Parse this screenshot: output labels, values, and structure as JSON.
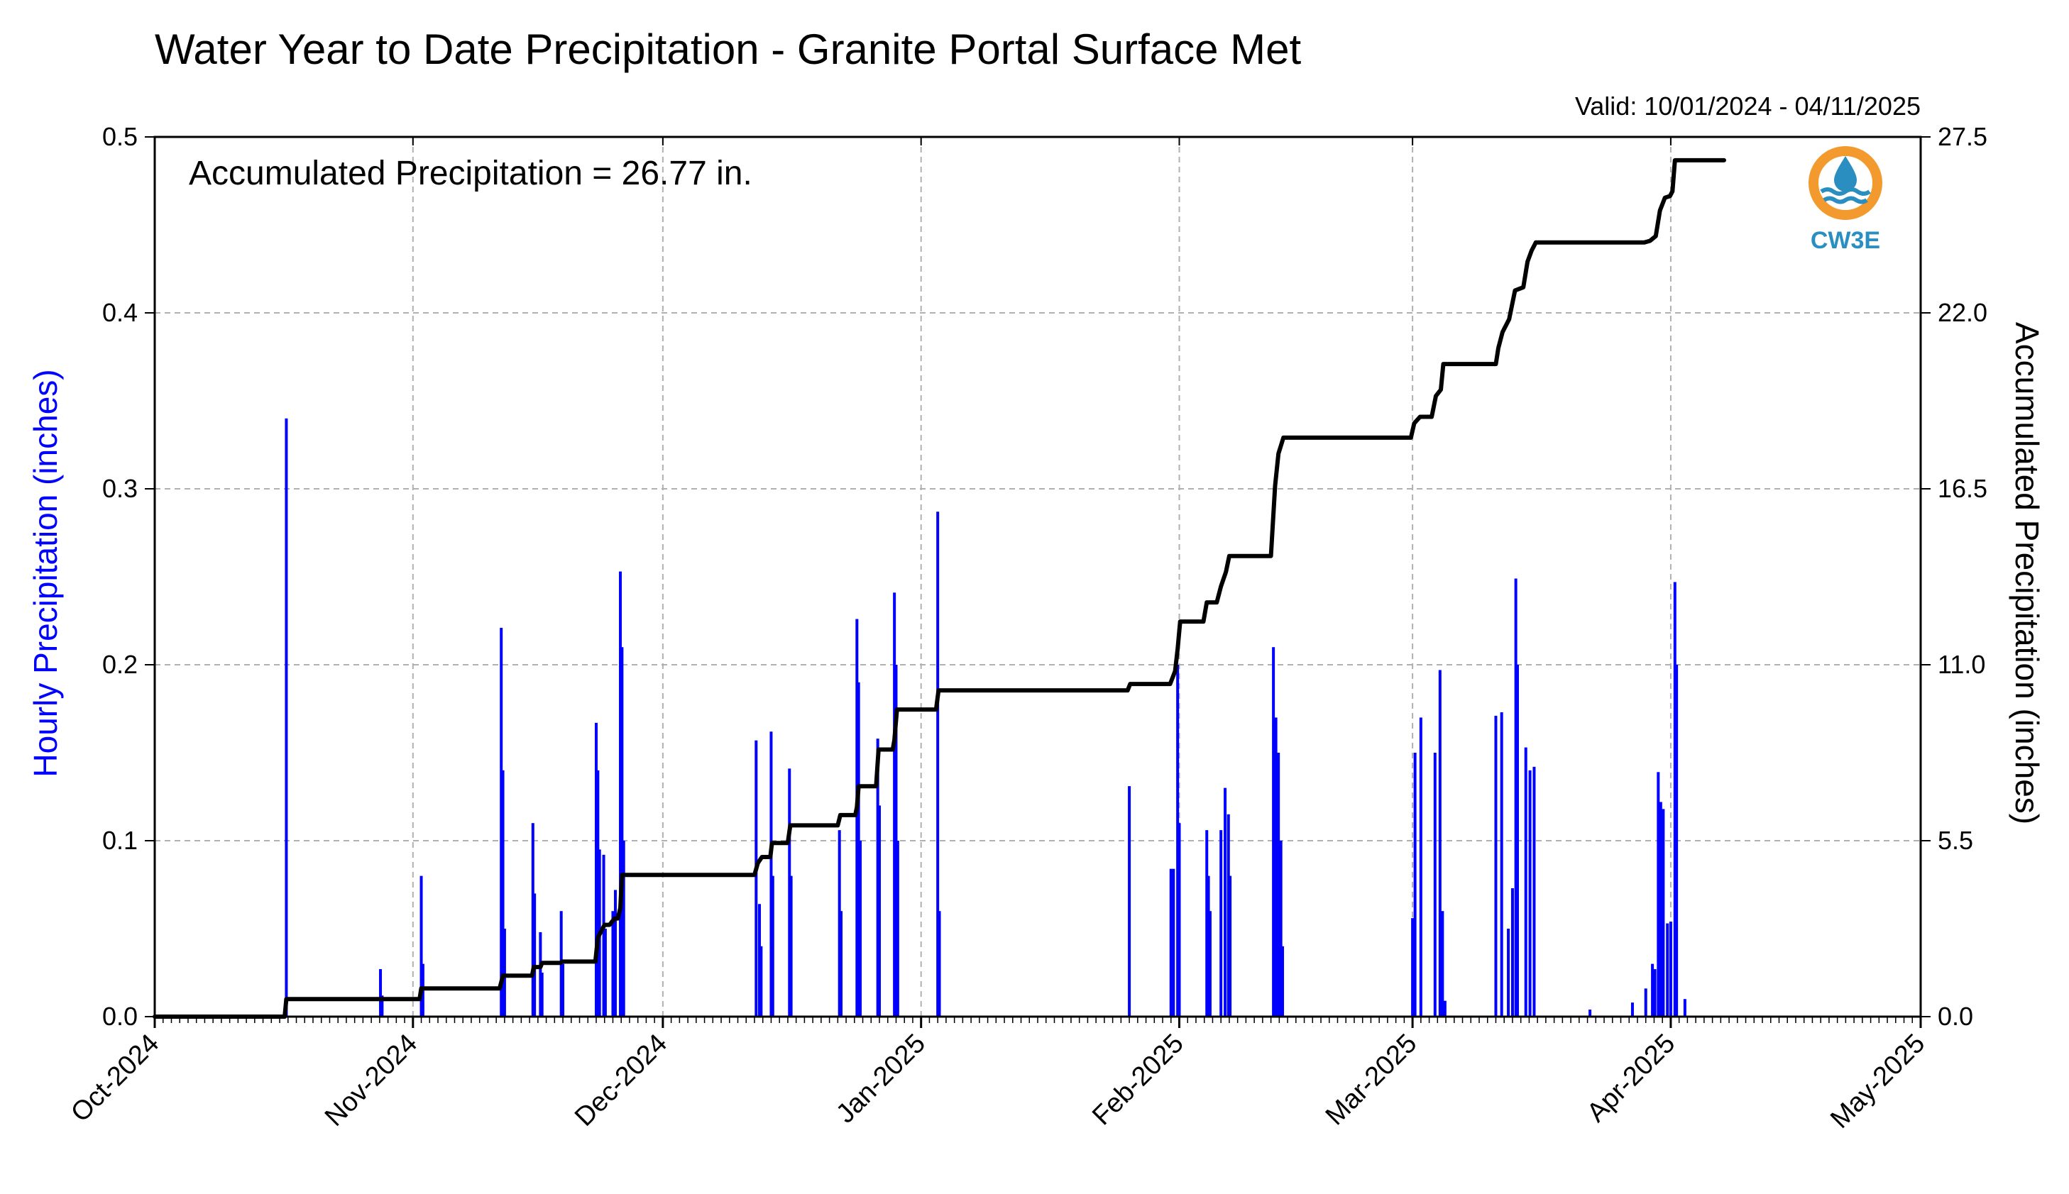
{
  "chart_data": {
    "type": "bar",
    "title": "Water Year to Date Precipitation - Granite Portal Surface Met",
    "subtitle": "Valid: 10/01/2024 - 04/11/2025",
    "annotation": "Accumulated Precipitation = 26.77 in.",
    "xlabel": "",
    "ylabel_left": "Hourly Precipitation (inches)",
    "ylabel_right": "Accumulated Precipitation (inches)",
    "ylim_left": [
      0,
      0.5
    ],
    "ylim_right": [
      0,
      27.5
    ],
    "xlim_days": [
      0,
      212
    ],
    "x_ticks": [
      {
        "label": "Oct-2024",
        "day": 0
      },
      {
        "label": "Nov-2024",
        "day": 31
      },
      {
        "label": "Dec-2024",
        "day": 61
      },
      {
        "label": "Jan-2025",
        "day": 92
      },
      {
        "label": "Feb-2025",
        "day": 123
      },
      {
        "label": "Mar-2025",
        "day": 151
      },
      {
        "label": "Apr-2025",
        "day": 182
      },
      {
        "label": "May-2025",
        "day": 212
      }
    ],
    "y_ticks_left": [
      "0.0",
      "0.1",
      "0.2",
      "0.3",
      "0.4",
      "0.5"
    ],
    "y_ticks_right": [
      "0.0",
      "5.5",
      "11.0",
      "16.5",
      "22.0",
      "27.5"
    ],
    "grid": true,
    "colors": {
      "hourly": "#0000ff",
      "accumulated": "#000000",
      "grid": "#b0b0b0",
      "logo_ring": "#f29a2e",
      "logo_blue": "#2a8fc0"
    },
    "logo": {
      "text": "CW3E",
      "icon": "water-drop-icon"
    },
    "series": [
      {
        "name": "Hourly Precipitation (inches)",
        "type": "bar",
        "axis": "left",
        "points": [
          [
            15.8,
            0.34
          ],
          [
            27.1,
            0.027
          ],
          [
            27.3,
            0.012
          ],
          [
            32.0,
            0.08
          ],
          [
            32.2,
            0.03
          ],
          [
            41.6,
            0.221
          ],
          [
            41.8,
            0.14
          ],
          [
            42.0,
            0.05
          ],
          [
            45.4,
            0.11
          ],
          [
            45.6,
            0.07
          ],
          [
            46.3,
            0.048
          ],
          [
            46.5,
            0.025
          ],
          [
            48.8,
            0.06
          ],
          [
            49.0,
            0.03
          ],
          [
            53.0,
            0.167
          ],
          [
            53.2,
            0.14
          ],
          [
            53.4,
            0.095
          ],
          [
            53.9,
            0.092
          ],
          [
            54.1,
            0.05
          ],
          [
            55.0,
            0.06
          ],
          [
            55.3,
            0.072
          ],
          [
            55.9,
            0.253
          ],
          [
            56.1,
            0.21
          ],
          [
            56.3,
            0.1
          ],
          [
            72.2,
            0.157
          ],
          [
            72.6,
            0.064
          ],
          [
            72.8,
            0.04
          ],
          [
            74.0,
            0.162
          ],
          [
            74.2,
            0.08
          ],
          [
            76.2,
            0.141
          ],
          [
            76.4,
            0.08
          ],
          [
            82.2,
            0.106
          ],
          [
            82.4,
            0.06
          ],
          [
            84.3,
            0.226
          ],
          [
            84.5,
            0.19
          ],
          [
            84.7,
            0.1
          ],
          [
            86.8,
            0.158
          ],
          [
            87.0,
            0.12
          ],
          [
            88.8,
            0.241
          ],
          [
            89.0,
            0.2
          ],
          [
            89.2,
            0.1
          ],
          [
            94.0,
            0.287
          ],
          [
            94.2,
            0.06
          ],
          [
            117.0,
            0.131
          ],
          [
            122.0,
            0.084
          ],
          [
            122.3,
            0.084
          ],
          [
            122.8,
            0.2
          ],
          [
            123.0,
            0.11
          ],
          [
            126.3,
            0.106
          ],
          [
            126.5,
            0.08
          ],
          [
            126.7,
            0.06
          ],
          [
            128.0,
            0.106
          ],
          [
            128.5,
            0.13
          ],
          [
            128.9,
            0.115
          ],
          [
            129.1,
            0.08
          ],
          [
            134.3,
            0.21
          ],
          [
            134.6,
            0.17
          ],
          [
            134.9,
            0.15
          ],
          [
            135.2,
            0.1
          ],
          [
            135.4,
            0.04
          ],
          [
            151.0,
            0.056
          ],
          [
            151.3,
            0.15
          ],
          [
            152.0,
            0.17
          ],
          [
            153.7,
            0.15
          ],
          [
            154.3,
            0.197
          ],
          [
            154.6,
            0.06
          ],
          [
            154.9,
            0.009
          ],
          [
            161.0,
            0.171
          ],
          [
            161.7,
            0.173
          ],
          [
            162.5,
            0.05
          ],
          [
            163.0,
            0.073
          ],
          [
            163.4,
            0.249
          ],
          [
            163.6,
            0.2
          ],
          [
            164.6,
            0.153
          ],
          [
            165.1,
            0.14
          ],
          [
            165.6,
            0.142
          ],
          [
            172.3,
            0.004
          ],
          [
            177.4,
            0.008
          ],
          [
            179.0,
            0.016
          ],
          [
            179.8,
            0.03
          ],
          [
            180.1,
            0.027
          ],
          [
            180.5,
            0.139
          ],
          [
            180.8,
            0.122
          ],
          [
            181.1,
            0.118
          ],
          [
            181.6,
            0.053
          ],
          [
            182.0,
            0.054
          ],
          [
            182.5,
            0.247
          ],
          [
            182.7,
            0.2
          ],
          [
            183.7,
            0.01
          ]
        ]
      },
      {
        "name": "Accumulated Precipitation (inches)",
        "type": "line",
        "axis": "right",
        "points": [
          [
            0,
            0
          ],
          [
            15.6,
            0
          ],
          [
            15.8,
            0.55
          ],
          [
            31.8,
            0.55
          ],
          [
            32.0,
            0.88
          ],
          [
            41.4,
            0.88
          ],
          [
            41.8,
            1.28
          ],
          [
            45.3,
            1.28
          ],
          [
            45.5,
            1.55
          ],
          [
            46.3,
            1.55
          ],
          [
            46.5,
            1.68
          ],
          [
            48.7,
            1.68
          ],
          [
            48.9,
            1.72
          ],
          [
            52.9,
            1.72
          ],
          [
            53.2,
            2.47
          ],
          [
            54.0,
            2.87
          ],
          [
            54.6,
            2.87
          ],
          [
            55.2,
            3.07
          ],
          [
            55.6,
            3.07
          ],
          [
            55.9,
            3.4
          ],
          [
            56.1,
            4.43
          ],
          [
            72.0,
            4.43
          ],
          [
            72.4,
            4.8
          ],
          [
            72.9,
            4.99
          ],
          [
            73.9,
            4.99
          ],
          [
            74.1,
            5.43
          ],
          [
            76.0,
            5.43
          ],
          [
            76.3,
            5.98
          ],
          [
            82.0,
            5.98
          ],
          [
            82.3,
            6.3
          ],
          [
            84.1,
            6.3
          ],
          [
            84.3,
            6.55
          ],
          [
            84.5,
            7.2
          ],
          [
            86.6,
            7.2
          ],
          [
            86.9,
            8.35
          ],
          [
            88.6,
            8.35
          ],
          [
            88.8,
            8.65
          ],
          [
            89.1,
            9.6
          ],
          [
            93.8,
            9.6
          ],
          [
            94.1,
            10.2
          ],
          [
            116.8,
            10.2
          ],
          [
            117.1,
            10.4
          ],
          [
            121.9,
            10.4
          ],
          [
            122.5,
            10.8
          ],
          [
            122.8,
            11.5
          ],
          [
            123.1,
            12.35
          ],
          [
            125.9,
            12.35
          ],
          [
            126.3,
            12.95
          ],
          [
            127.5,
            12.95
          ],
          [
            128.0,
            13.45
          ],
          [
            128.6,
            13.9
          ],
          [
            129.0,
            14.4
          ],
          [
            134.0,
            14.4
          ],
          [
            134.2,
            15.3
          ],
          [
            134.5,
            16.6
          ],
          [
            134.9,
            17.6
          ],
          [
            135.5,
            18.1
          ],
          [
            150.8,
            18.1
          ],
          [
            151.2,
            18.55
          ],
          [
            151.9,
            18.75
          ],
          [
            153.3,
            18.75
          ],
          [
            153.8,
            19.4
          ],
          [
            154.4,
            19.6
          ],
          [
            154.7,
            20.4
          ],
          [
            161.0,
            20.4
          ],
          [
            161.3,
            20.9
          ],
          [
            161.8,
            21.4
          ],
          [
            162.6,
            21.8
          ],
          [
            163.3,
            22.7
          ],
          [
            164.3,
            22.8
          ],
          [
            164.8,
            23.6
          ],
          [
            165.3,
            23.95
          ],
          [
            165.8,
            24.2
          ],
          [
            178.8,
            24.2
          ],
          [
            179.5,
            24.25
          ],
          [
            180.2,
            24.4
          ],
          [
            180.7,
            25.2
          ],
          [
            181.3,
            25.6
          ],
          [
            181.9,
            25.65
          ],
          [
            182.2,
            25.8
          ],
          [
            182.5,
            26.77
          ],
          [
            188.4,
            26.77
          ]
        ]
      }
    ]
  }
}
